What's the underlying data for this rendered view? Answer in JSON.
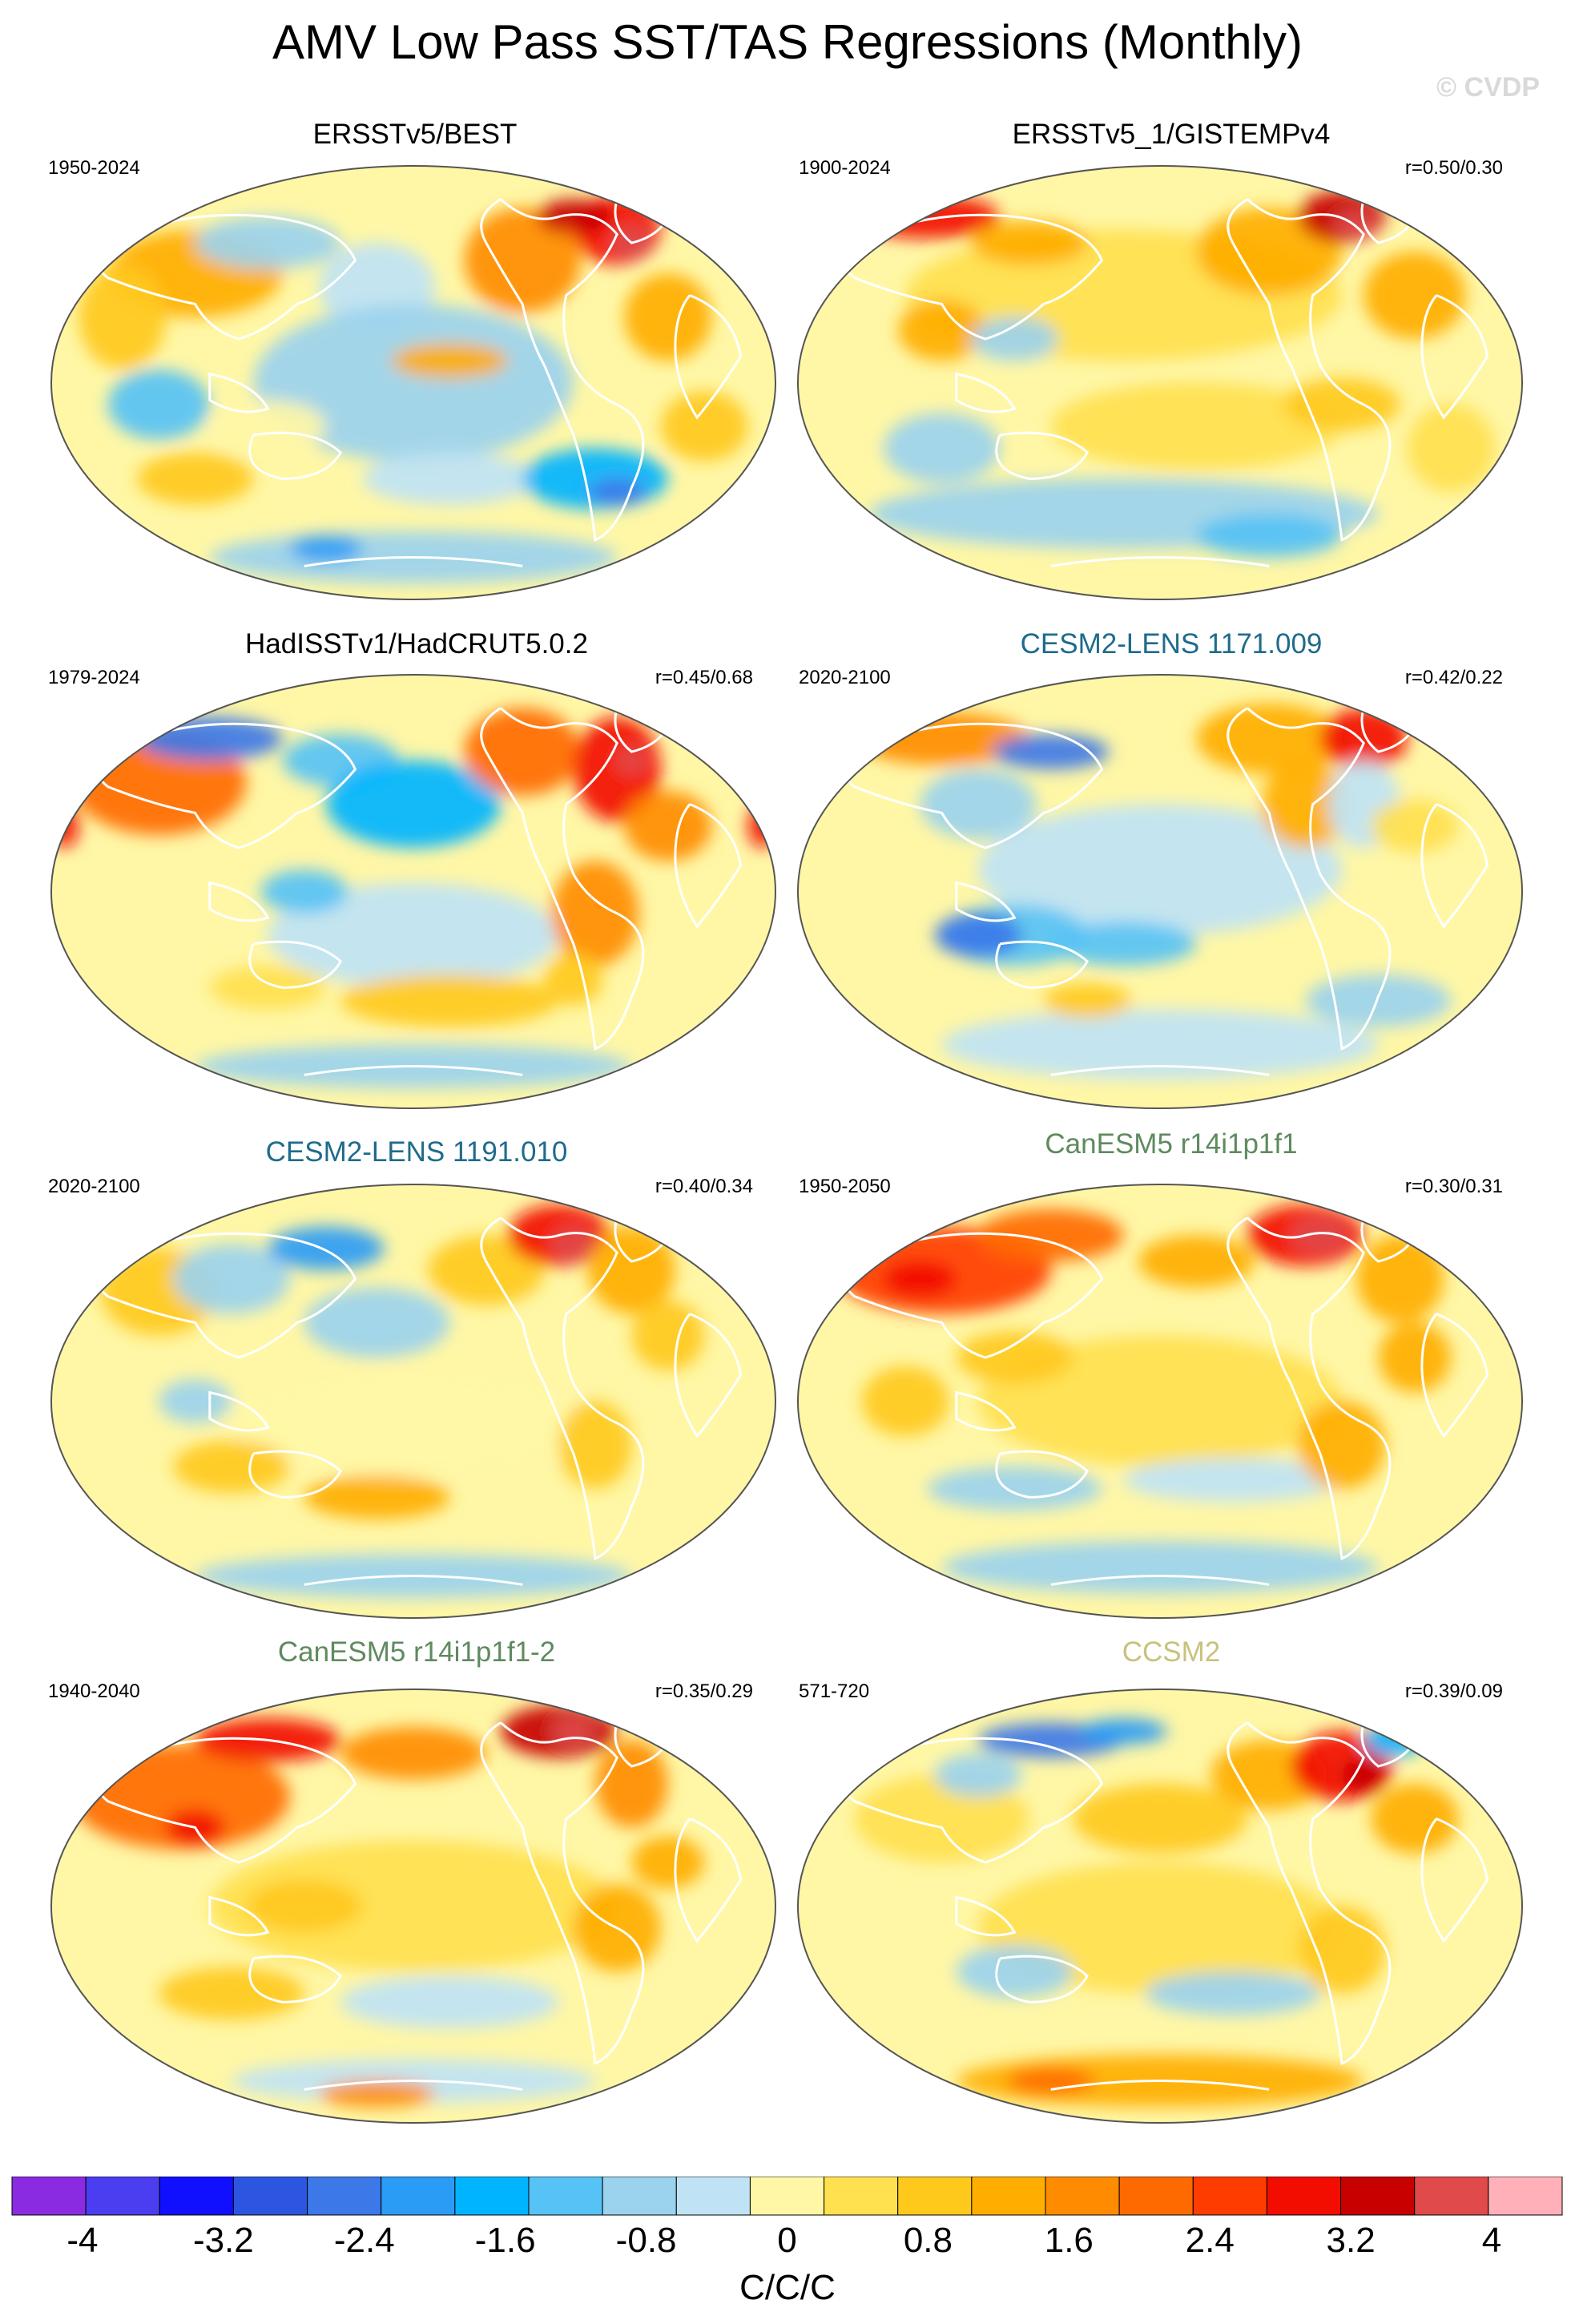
{
  "title": "AMV Low Pass SST/TAS Regressions (Monthly)",
  "watermark": "© CVDP",
  "panels": [
    {
      "title": "ERSSTv5/BEST",
      "title_color": "#000000",
      "years": "1950-2024",
      "r": ""
    },
    {
      "title": "ERSSTv5_1/GISTEMPv4",
      "title_color": "#000000",
      "years": "1900-2024",
      "r": "r=0.50/0.30"
    },
    {
      "title": "HadISSTv1/HadCRUT5.0.2",
      "title_color": "#000000",
      "years": "1979-2024",
      "r": "r=0.45/0.68"
    },
    {
      "title": "CESM2-LENS 1171.009",
      "title_color": "#1f6b8c",
      "years": "2020-2100",
      "r": "r=0.42/0.22"
    },
    {
      "title": "CESM2-LENS 1191.010",
      "title_color": "#1f6b8c",
      "years": "2020-2100",
      "r": "r=0.40/0.34"
    },
    {
      "title": "CanESM5 r14i1p1f1",
      "title_color": "#5f8a5f",
      "years": "1950-2050",
      "r": "r=0.30/0.31"
    },
    {
      "title": "CanESM5 r14i1p1f1-2",
      "title_color": "#5f8a5f",
      "years": "1940-2040",
      "r": "r=0.35/0.29"
    },
    {
      "title": "CCSM2",
      "title_color": "#c9c27c",
      "years": "571-720",
      "r": "r=0.39/0.09"
    }
  ],
  "colorbar": {
    "colors": [
      "#8a2be2",
      "#4b3df0",
      "#1010ff",
      "#2c56e0",
      "#3c78e8",
      "#2a9cf5",
      "#00b4ff",
      "#56c2f5",
      "#9bd2ee",
      "#bfe3f5",
      "#fff7a6",
      "#ffe04f",
      "#ffc91c",
      "#ffae00",
      "#ff8c00",
      "#ff6a00",
      "#ff3c00",
      "#f20d00",
      "#c80000",
      "#e04a4a",
      "#ffb0b8"
    ],
    "tick_labels": [
      "-4",
      "-3.2",
      "-2.4",
      "-1.6",
      "-0.8",
      "0",
      "0.8",
      "1.6",
      "2.4",
      "3.2",
      "4"
    ],
    "units": "C/C/C"
  },
  "chart_data": {
    "type": "heatmap",
    "title": "AMV Low Pass SST/TAS Regressions (Monthly)",
    "units": "C/C/C",
    "color_range": [
      -4.4,
      4.4
    ],
    "contour_interval": 0.4,
    "colorbar_ticks": [
      -4,
      -3.2,
      -2.4,
      -1.6,
      -0.8,
      0,
      0.8,
      1.6,
      2.4,
      3.2,
      4
    ],
    "panels": [
      {
        "dataset": "ERSSTv5/BEST",
        "period": "1950-2024",
        "pattern_correlation": null
      },
      {
        "dataset": "ERSSTv5_1/GISTEMPv4",
        "period": "1900-2024",
        "pattern_correlation": [
          0.5,
          0.3
        ]
      },
      {
        "dataset": "HadISSTv1/HadCRUT5.0.2",
        "period": "1979-2024",
        "pattern_correlation": [
          0.45,
          0.68
        ]
      },
      {
        "dataset": "CESM2-LENS 1171.009",
        "period": "2020-2100",
        "pattern_correlation": [
          0.42,
          0.22
        ]
      },
      {
        "dataset": "CESM2-LENS 1191.010",
        "period": "2020-2100",
        "pattern_correlation": [
          0.4,
          0.34
        ]
      },
      {
        "dataset": "CanESM5 r14i1p1f1",
        "period": "1950-2050",
        "pattern_correlation": [
          0.3,
          0.31
        ]
      },
      {
        "dataset": "CanESM5 r14i1p1f1-2",
        "period": "1940-2040",
        "pattern_correlation": [
          0.35,
          0.29
        ]
      },
      {
        "dataset": "CCSM2",
        "period": "571-720",
        "pattern_correlation": [
          0.39,
          0.09
        ]
      }
    ]
  }
}
